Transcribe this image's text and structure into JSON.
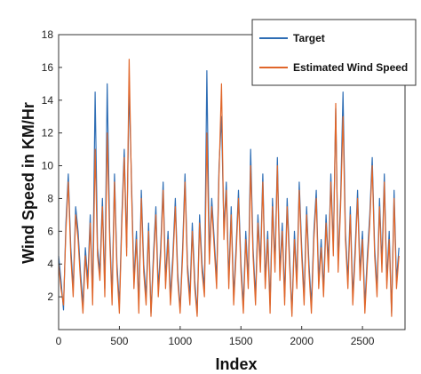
{
  "chart_data": {
    "type": "line",
    "xlabel": "Index",
    "ylabel": "Wind Speed in KM/Hr",
    "xlim": [
      0,
      2850
    ],
    "ylim": [
      0,
      18
    ],
    "xticks": [
      0,
      500,
      1000,
      1500,
      2000,
      2500
    ],
    "yticks": [
      2,
      4,
      6,
      8,
      10,
      12,
      14,
      16,
      18
    ],
    "legend_position": "top-right",
    "grid": false,
    "series": [
      {
        "name": "Target",
        "color": "#2e6db4",
        "points": [
          [
            0,
            4.5
          ],
          [
            20,
            3.0
          ],
          [
            40,
            1.2
          ],
          [
            60,
            6.5
          ],
          [
            80,
            9.5
          ],
          [
            100,
            5.0
          ],
          [
            120,
            2.5
          ],
          [
            140,
            7.5
          ],
          [
            160,
            6.0
          ],
          [
            180,
            3.5
          ],
          [
            200,
            1.5
          ],
          [
            220,
            5.0
          ],
          [
            240,
            3.0
          ],
          [
            260,
            7.0
          ],
          [
            280,
            2.0
          ],
          [
            300,
            14.5
          ],
          [
            320,
            5.0
          ],
          [
            340,
            3.5
          ],
          [
            360,
            8.0
          ],
          [
            380,
            2.5
          ],
          [
            400,
            15.0
          ],
          [
            420,
            6.0
          ],
          [
            440,
            2.0
          ],
          [
            460,
            9.5
          ],
          [
            480,
            4.0
          ],
          [
            500,
            1.5
          ],
          [
            520,
            7.0
          ],
          [
            540,
            11.0
          ],
          [
            560,
            5.0
          ],
          [
            580,
            14.8
          ],
          [
            600,
            9.0
          ],
          [
            620,
            3.0
          ],
          [
            640,
            6.0
          ],
          [
            660,
            1.5
          ],
          [
            680,
            8.5
          ],
          [
            700,
            4.0
          ],
          [
            720,
            2.0
          ],
          [
            740,
            6.5
          ],
          [
            760,
            1.0
          ],
          [
            780,
            4.5
          ],
          [
            800,
            7.5
          ],
          [
            820,
            2.5
          ],
          [
            840,
            5.0
          ],
          [
            860,
            9.0
          ],
          [
            880,
            3.0
          ],
          [
            900,
            6.0
          ],
          [
            920,
            2.0
          ],
          [
            940,
            4.5
          ],
          [
            960,
            8.0
          ],
          [
            980,
            3.5
          ],
          [
            1000,
            1.2
          ],
          [
            1020,
            5.0
          ],
          [
            1040,
            9.5
          ],
          [
            1060,
            4.0
          ],
          [
            1080,
            2.0
          ],
          [
            1100,
            6.5
          ],
          [
            1120,
            3.0
          ],
          [
            1140,
            1.0
          ],
          [
            1160,
            7.0
          ],
          [
            1180,
            4.0
          ],
          [
            1200,
            2.5
          ],
          [
            1220,
            15.8
          ],
          [
            1240,
            4.5
          ],
          [
            1260,
            8.0
          ],
          [
            1280,
            5.5
          ],
          [
            1300,
            3.0
          ],
          [
            1320,
            10.0
          ],
          [
            1340,
            13.0
          ],
          [
            1360,
            6.0
          ],
          [
            1380,
            9.0
          ],
          [
            1400,
            3.0
          ],
          [
            1420,
            7.5
          ],
          [
            1440,
            2.0
          ],
          [
            1460,
            5.0
          ],
          [
            1480,
            8.5
          ],
          [
            1500,
            4.0
          ],
          [
            1520,
            1.5
          ],
          [
            1540,
            6.0
          ],
          [
            1560,
            3.0
          ],
          [
            1580,
            11.0
          ],
          [
            1600,
            5.0
          ],
          [
            1620,
            2.0
          ],
          [
            1640,
            7.0
          ],
          [
            1660,
            4.0
          ],
          [
            1680,
            9.5
          ],
          [
            1700,
            3.0
          ],
          [
            1720,
            6.0
          ],
          [
            1740,
            1.5
          ],
          [
            1760,
            8.0
          ],
          [
            1780,
            4.0
          ],
          [
            1800,
            10.5
          ],
          [
            1820,
            3.5
          ],
          [
            1840,
            6.5
          ],
          [
            1860,
            2.0
          ],
          [
            1880,
            8.0
          ],
          [
            1900,
            4.5
          ],
          [
            1920,
            1.0
          ],
          [
            1940,
            6.0
          ],
          [
            1960,
            3.0
          ],
          [
            1980,
            9.0
          ],
          [
            2000,
            5.0
          ],
          [
            2020,
            2.0
          ],
          [
            2040,
            7.5
          ],
          [
            2060,
            4.0
          ],
          [
            2080,
            1.5
          ],
          [
            2100,
            6.0
          ],
          [
            2120,
            8.5
          ],
          [
            2140,
            3.0
          ],
          [
            2160,
            5.5
          ],
          [
            2180,
            2.5
          ],
          [
            2200,
            7.0
          ],
          [
            2220,
            4.0
          ],
          [
            2240,
            9.5
          ],
          [
            2260,
            5.0
          ],
          [
            2280,
            13.5
          ],
          [
            2300,
            4.0
          ],
          [
            2320,
            8.0
          ],
          [
            2340,
            14.5
          ],
          [
            2360,
            6.0
          ],
          [
            2380,
            3.0
          ],
          [
            2400,
            7.5
          ],
          [
            2420,
            2.0
          ],
          [
            2440,
            5.0
          ],
          [
            2460,
            8.5
          ],
          [
            2480,
            3.5
          ],
          [
            2500,
            6.0
          ],
          [
            2520,
            1.5
          ],
          [
            2540,
            4.5
          ],
          [
            2560,
            7.0
          ],
          [
            2580,
            10.5
          ],
          [
            2600,
            5.0
          ],
          [
            2620,
            2.5
          ],
          [
            2640,
            8.0
          ],
          [
            2660,
            4.0
          ],
          [
            2680,
            9.5
          ],
          [
            2700,
            3.0
          ],
          [
            2720,
            6.0
          ],
          [
            2740,
            1.0
          ],
          [
            2760,
            8.5
          ],
          [
            2780,
            3.0
          ],
          [
            2800,
            5.0
          ]
        ]
      },
      {
        "name": "Estimated Wind Speed",
        "color": "#e0662a",
        "points": [
          [
            0,
            4.0
          ],
          [
            20,
            2.5
          ],
          [
            40,
            1.5
          ],
          [
            60,
            6.0
          ],
          [
            80,
            9.0
          ],
          [
            100,
            4.5
          ],
          [
            120,
            2.0
          ],
          [
            140,
            7.0
          ],
          [
            160,
            5.5
          ],
          [
            180,
            3.0
          ],
          [
            200,
            1.0
          ],
          [
            220,
            4.5
          ],
          [
            240,
            2.5
          ],
          [
            260,
            6.5
          ],
          [
            280,
            1.5
          ],
          [
            300,
            11.0
          ],
          [
            320,
            4.5
          ],
          [
            340,
            3.0
          ],
          [
            360,
            7.5
          ],
          [
            380,
            2.0
          ],
          [
            400,
            12.0
          ],
          [
            420,
            5.5
          ],
          [
            440,
            1.5
          ],
          [
            460,
            9.0
          ],
          [
            480,
            3.5
          ],
          [
            500,
            1.0
          ],
          [
            520,
            6.5
          ],
          [
            540,
            10.5
          ],
          [
            560,
            4.5
          ],
          [
            580,
            16.5
          ],
          [
            600,
            8.5
          ],
          [
            620,
            2.5
          ],
          [
            640,
            5.5
          ],
          [
            660,
            1.0
          ],
          [
            680,
            8.0
          ],
          [
            700,
            3.5
          ],
          [
            720,
            1.5
          ],
          [
            740,
            6.0
          ],
          [
            760,
            0.8
          ],
          [
            780,
            4.0
          ],
          [
            800,
            7.0
          ],
          [
            820,
            2.0
          ],
          [
            840,
            4.5
          ],
          [
            860,
            8.5
          ],
          [
            880,
            2.5
          ],
          [
            900,
            5.5
          ],
          [
            920,
            1.5
          ],
          [
            940,
            4.0
          ],
          [
            960,
            7.5
          ],
          [
            980,
            3.0
          ],
          [
            1000,
            1.0
          ],
          [
            1020,
            4.5
          ],
          [
            1040,
            9.0
          ],
          [
            1060,
            3.5
          ],
          [
            1080,
            1.5
          ],
          [
            1100,
            6.0
          ],
          [
            1120,
            2.5
          ],
          [
            1140,
            0.8
          ],
          [
            1160,
            6.5
          ],
          [
            1180,
            3.5
          ],
          [
            1200,
            2.0
          ],
          [
            1220,
            12.0
          ],
          [
            1240,
            4.0
          ],
          [
            1260,
            7.5
          ],
          [
            1280,
            5.0
          ],
          [
            1300,
            2.5
          ],
          [
            1320,
            9.5
          ],
          [
            1340,
            15.0
          ],
          [
            1360,
            5.5
          ],
          [
            1380,
            8.5
          ],
          [
            1400,
            2.5
          ],
          [
            1420,
            7.0
          ],
          [
            1440,
            1.5
          ],
          [
            1460,
            4.5
          ],
          [
            1480,
            8.0
          ],
          [
            1500,
            3.5
          ],
          [
            1520,
            1.0
          ],
          [
            1540,
            5.5
          ],
          [
            1560,
            2.5
          ],
          [
            1580,
            10.0
          ],
          [
            1600,
            4.5
          ],
          [
            1620,
            1.5
          ],
          [
            1640,
            6.5
          ],
          [
            1660,
            3.5
          ],
          [
            1680,
            9.0
          ],
          [
            1700,
            2.5
          ],
          [
            1720,
            5.5
          ],
          [
            1740,
            1.0
          ],
          [
            1760,
            7.5
          ],
          [
            1780,
            3.5
          ],
          [
            1800,
            10.0
          ],
          [
            1820,
            3.0
          ],
          [
            1840,
            6.0
          ],
          [
            1860,
            1.5
          ],
          [
            1880,
            7.5
          ],
          [
            1900,
            4.0
          ],
          [
            1920,
            0.8
          ],
          [
            1940,
            5.5
          ],
          [
            1960,
            2.5
          ],
          [
            1980,
            8.5
          ],
          [
            2000,
            4.5
          ],
          [
            2020,
            1.5
          ],
          [
            2040,
            7.0
          ],
          [
            2060,
            3.5
          ],
          [
            2080,
            1.0
          ],
          [
            2100,
            5.5
          ],
          [
            2120,
            8.0
          ],
          [
            2140,
            2.5
          ],
          [
            2160,
            5.0
          ],
          [
            2180,
            2.0
          ],
          [
            2200,
            6.5
          ],
          [
            2220,
            3.5
          ],
          [
            2240,
            9.0
          ],
          [
            2260,
            4.5
          ],
          [
            2280,
            13.8
          ],
          [
            2300,
            3.5
          ],
          [
            2320,
            7.5
          ],
          [
            2340,
            13.0
          ],
          [
            2360,
            5.5
          ],
          [
            2380,
            2.5
          ],
          [
            2400,
            7.0
          ],
          [
            2420,
            1.5
          ],
          [
            2440,
            4.5
          ],
          [
            2460,
            8.0
          ],
          [
            2480,
            3.0
          ],
          [
            2500,
            5.5
          ],
          [
            2520,
            1.0
          ],
          [
            2540,
            4.0
          ],
          [
            2560,
            6.5
          ],
          [
            2580,
            10.0
          ],
          [
            2600,
            4.5
          ],
          [
            2620,
            2.0
          ],
          [
            2640,
            7.5
          ],
          [
            2660,
            3.5
          ],
          [
            2680,
            9.0
          ],
          [
            2700,
            2.5
          ],
          [
            2720,
            5.5
          ],
          [
            2740,
            0.8
          ],
          [
            2760,
            8.0
          ],
          [
            2780,
            2.5
          ],
          [
            2800,
            4.5
          ]
        ]
      }
    ]
  }
}
